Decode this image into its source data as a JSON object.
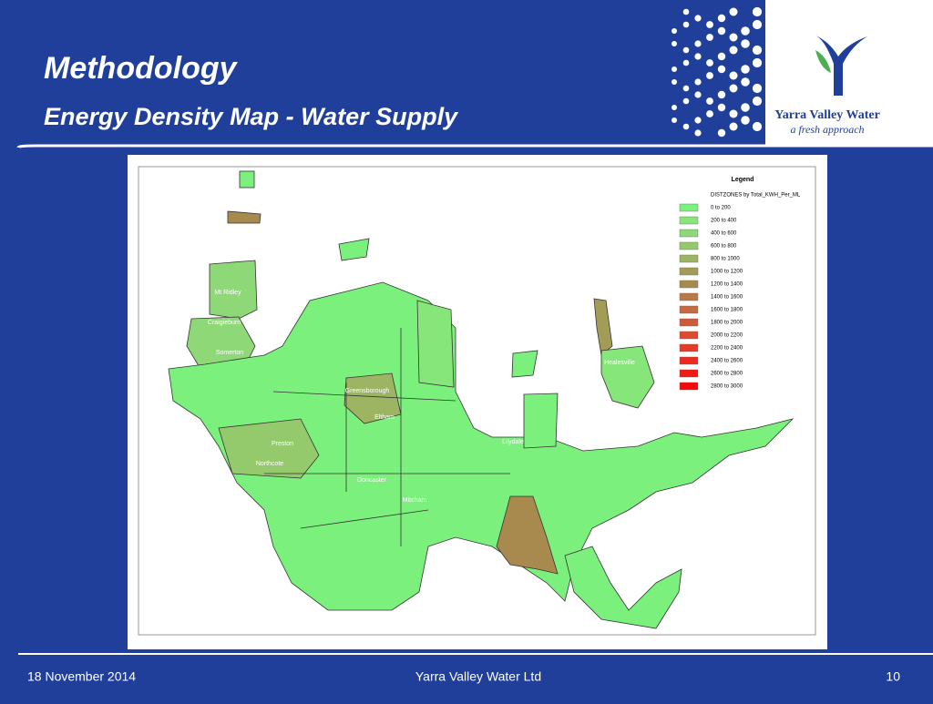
{
  "header": {
    "title": "Methodology",
    "subtitle": "Energy Density Map - Water Supply"
  },
  "logo": {
    "name": "Yarra Valley Water",
    "tagline": "a fresh approach"
  },
  "map": {
    "legend": {
      "title": "Legend",
      "field": "DISTZONES by Total_KWH_Per_ML",
      "items": [
        {
          "label": "0  to  200",
          "color": "#7cf07c"
        },
        {
          "label": "200  to  400",
          "color": "#86e67a"
        },
        {
          "label": "400  to  600",
          "color": "#8fd877"
        },
        {
          "label": "600  to  800",
          "color": "#94c96c"
        },
        {
          "label": "800  to  1000",
          "color": "#9db562"
        },
        {
          "label": "1000  to  1200",
          "color": "#a39c57"
        },
        {
          "label": "1200  to  1400",
          "color": "#a88a4e"
        },
        {
          "label": "1400  to  1600",
          "color": "#b87a48"
        },
        {
          "label": "1600  to  1800",
          "color": "#c66a40"
        },
        {
          "label": "1800  to  2000",
          "color": "#d05a38"
        },
        {
          "label": "2000  to  2200",
          "color": "#dc4a30"
        },
        {
          "label": "2200  to  2400",
          "color": "#e43a28"
        },
        {
          "label": "2400  to  2600",
          "color": "#ec2a1e"
        },
        {
          "label": "2600  to  2800",
          "color": "#f21a14"
        },
        {
          "label": "2800  to  3000",
          "color": "#f80a0a"
        }
      ]
    },
    "places": [
      "Mt Ridley",
      "Craigieburn",
      "Somerton",
      "Greensborough",
      "Eltham",
      "Preston",
      "Northcote",
      "Doncaster",
      "Mitcham",
      "Lilydale",
      "Healesville"
    ]
  },
  "footer": {
    "date": "18 November 2014",
    "company": "Yarra Valley Water Ltd",
    "page": "10"
  }
}
